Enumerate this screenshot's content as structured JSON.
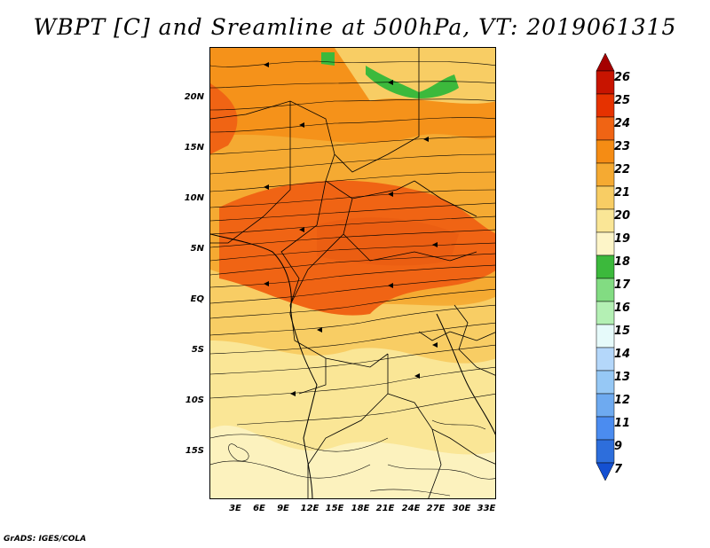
{
  "title": "WBPT [C] and Sreamline at 500hPa, VT: 2019061315",
  "credit": "GrADS: IGES/COLA",
  "lat_labels": [
    "20N",
    "15N",
    "10N",
    "5N",
    "EQ",
    "5S",
    "10S",
    "15S"
  ],
  "lon_labels": [
    "3E",
    "6E",
    "9E",
    "12E",
    "15E",
    "18E",
    "21E",
    "24E",
    "27E",
    "30E",
    "33E"
  ],
  "colorbar": {
    "labels": [
      "26",
      "25",
      "24",
      "23",
      "22",
      "21",
      "20",
      "19",
      "18",
      "17",
      "16",
      "15",
      "14",
      "13",
      "12",
      "11",
      "9",
      "7"
    ],
    "colors": [
      "#a50000",
      "#c81400",
      "#e63200",
      "#f06414",
      "#f58c14",
      "#f5aa32",
      "#f8cd64",
      "#fae696",
      "#fdf5c8",
      "#3cb93c",
      "#82dc82",
      "#b4f0b4",
      "#e6fafa",
      "#b4d7fa",
      "#96c8f5",
      "#6eaaf0",
      "#4b8cf0",
      "#2d6edc",
      "#1450d2"
    ]
  },
  "map": {
    "fields": {
      "green_region": "#3cb93c",
      "high": "#f06414",
      "mid": "#f5aa32",
      "low": "#fae696"
    }
  }
}
